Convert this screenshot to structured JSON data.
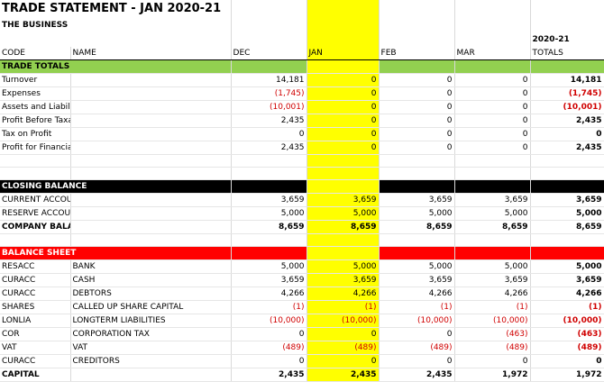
{
  "title": "TRADE STATEMENT - JAN 2020-21",
  "subtitle": "THE BUSINESS",
  "year_label": "2020-21",
  "headers": [
    "CODE",
    "NAME",
    "DEC",
    "JAN",
    "FEB",
    "MAR",
    "TOTALS"
  ],
  "colors": {
    "jan_highlight": "#ffff00",
    "trade_totals": "#92d050",
    "closing_balance": "#000000",
    "balance_sheet": "#ff0000",
    "negative": "#d00000"
  },
  "trade_totals": {
    "label": "TRADE TOTALS",
    "rows": [
      {
        "code": "Turnover",
        "name": "",
        "dec": "14,181",
        "jan": "0",
        "feb": "0",
        "mar": "0",
        "total": "14,181"
      },
      {
        "code": "Expenses",
        "name": "",
        "dec": "(1,745)",
        "jan": "0",
        "feb": "0",
        "mar": "0",
        "total": "(1,745)"
      },
      {
        "code": "Assets and Liabilities",
        "name": "",
        "dec": "(10,001)",
        "jan": "0",
        "feb": "0",
        "mar": "0",
        "total": "(10,001)"
      },
      {
        "code": "Profit Before Taxation",
        "name": "",
        "dec": "2,435",
        "jan": "0",
        "feb": "0",
        "mar": "0",
        "total": "2,435"
      },
      {
        "code": "Tax on Profit",
        "name": "",
        "dec": "0",
        "jan": "0",
        "feb": "0",
        "mar": "0",
        "total": "0"
      },
      {
        "code": "Profit for Financial Year",
        "name": "",
        "dec": "2,435",
        "jan": "0",
        "feb": "0",
        "mar": "0",
        "total": "2,435"
      }
    ]
  },
  "closing_balance": {
    "label": "CLOSING BALANCE",
    "rows": [
      {
        "code": "CURRENT ACCOUNT",
        "name": "",
        "dec": "3,659",
        "jan": "3,659",
        "feb": "3,659",
        "mar": "3,659",
        "total": "3,659"
      },
      {
        "code": "RESERVE ACCOUNT",
        "name": "",
        "dec": "5,000",
        "jan": "5,000",
        "feb": "5,000",
        "mar": "5,000",
        "total": "5,000"
      }
    ],
    "total_row": {
      "code": "COMPANY BALANCE",
      "name": "",
      "dec": "8,659",
      "jan": "8,659",
      "feb": "8,659",
      "mar": "8,659",
      "total": "8,659"
    }
  },
  "balance_sheet": {
    "label": "BALANCE SHEET",
    "rows": [
      {
        "code": "RESACC",
        "name": "BANK",
        "dec": "5,000",
        "jan": "5,000",
        "feb": "5,000",
        "mar": "5,000",
        "total": "5,000"
      },
      {
        "code": "CURACC",
        "name": "CASH",
        "dec": "3,659",
        "jan": "3,659",
        "feb": "3,659",
        "mar": "3,659",
        "total": "3,659"
      },
      {
        "code": "CURACC",
        "name": "DEBTORS",
        "dec": "4,266",
        "jan": "4,266",
        "feb": "4,266",
        "mar": "4,266",
        "total": "4,266"
      },
      {
        "code": "SHARES",
        "name": "CALLED UP SHARE CAPITAL",
        "dec": "(1)",
        "jan": "(1)",
        "feb": "(1)",
        "mar": "(1)",
        "total": "(1)"
      },
      {
        "code": "LONLIA",
        "name": "LONGTERM LIABILITIES",
        "dec": "(10,000)",
        "jan": "(10,000)",
        "feb": "(10,000)",
        "mar": "(10,000)",
        "total": "(10,000)"
      },
      {
        "code": "COR",
        "name": "CORPORATION TAX",
        "dec": "0",
        "jan": "0",
        "feb": "0",
        "mar": "(463)",
        "total": "(463)"
      },
      {
        "code": "VAT",
        "name": "VAT",
        "dec": "(489)",
        "jan": "(489)",
        "feb": "(489)",
        "mar": "(489)",
        "total": "(489)"
      },
      {
        "code": "CURACC",
        "name": "CREDITORS",
        "dec": "0",
        "jan": "0",
        "feb": "0",
        "mar": "0",
        "total": "0"
      }
    ],
    "total_row": {
      "code": "CAPITAL",
      "name": "",
      "dec": "2,435",
      "jan": "2,435",
      "feb": "2,435",
      "mar": "1,972",
      "total": "1,972"
    }
  }
}
